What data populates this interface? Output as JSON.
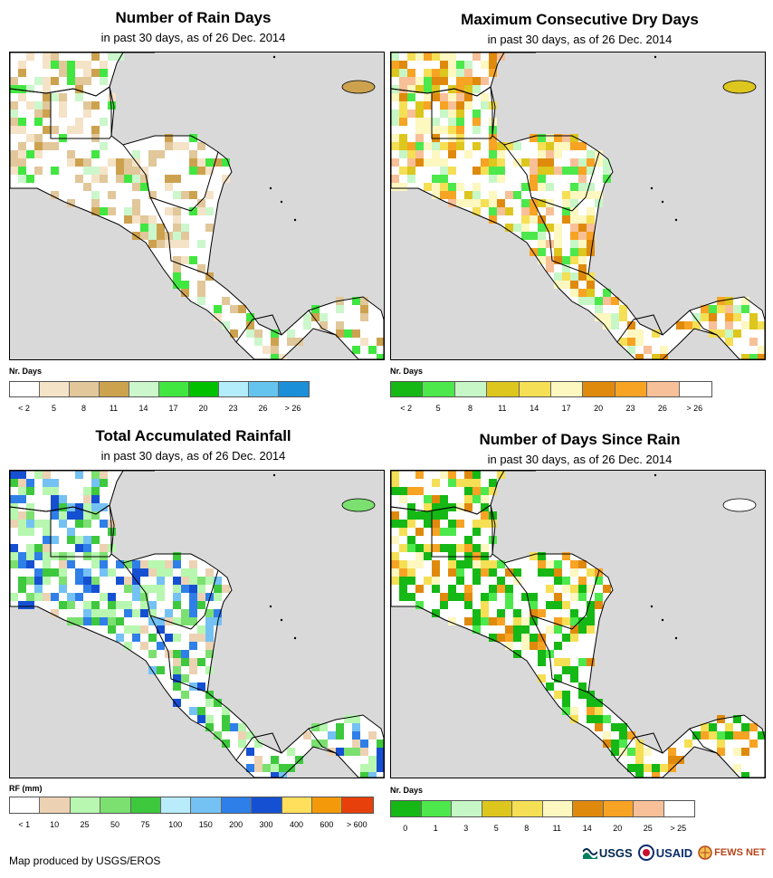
{
  "panels": [
    {
      "id": "rain-days",
      "title": "Number of Rain Days",
      "subtitle": "in past 30 days, as of 26 Dec. 2014",
      "legend_title": "Nr. Days",
      "colors": [
        "#ffffff",
        "#f5e3c8",
        "#e1c79a",
        "#cda24f",
        "#ccf7cc",
        "#41e641",
        "#00c000",
        "#b3ecfb",
        "#65c4ee",
        "#1b8fd8"
      ],
      "labels": [
        "< 2",
        "5",
        "8",
        "11",
        "14",
        "17",
        "20",
        "23",
        "26",
        "> 26"
      ],
      "palette": [
        "#ffffff",
        "#ffffff",
        "#ffffff",
        "#f5e3c8",
        "#e1c79a",
        "#e1c79a",
        "#cda24f",
        "#ccf7cc",
        "#41e641"
      ]
    },
    {
      "id": "max-dry-days",
      "title": "Maximum Consecutive Dry Days",
      "subtitle": "in past 30 days, as of 26 Dec. 2014",
      "legend_title": "Nr. Days",
      "colors": [
        "#15b815",
        "#4ce84c",
        "#c7f7c7",
        "#ddc61e",
        "#f5df55",
        "#fdf7c0",
        "#df8a0d",
        "#f7a324",
        "#f8c098",
        "#ffffff"
      ],
      "labels": [
        "< 2",
        "5",
        "8",
        "11",
        "14",
        "17",
        "20",
        "23",
        "26",
        "> 26"
      ],
      "palette": [
        "#ffffff",
        "#fdf7c0",
        "#f5df55",
        "#ddc61e",
        "#df8a0d",
        "#f7a324",
        "#f8c098",
        "#fdf7c0",
        "#c7f7c7",
        "#4ce84c"
      ]
    },
    {
      "id": "total-rainfall",
      "title": "Total Accumulated Rainfall",
      "subtitle": "in past 30 days, as of 26 Dec. 2014",
      "legend_title": "RF (mm)",
      "colors": [
        "#ffffff",
        "#ecd2b3",
        "#b7f7b0",
        "#7be070",
        "#3dc83d",
        "#b9ecfa",
        "#74c1f4",
        "#2f7fe8",
        "#1650d2",
        "#ffdf5c",
        "#f49a0a",
        "#e8400a"
      ],
      "labels": [
        "< 1",
        "10",
        "25",
        "50",
        "75",
        "100",
        "150",
        "200",
        "300",
        "400",
        "600",
        "> 600"
      ],
      "palette": [
        "#ffffff",
        "#ecd2b3",
        "#b7f7b0",
        "#7be070",
        "#3dc83d",
        "#74c1f4",
        "#2f7fe8",
        "#1650d2",
        "#ffffff",
        "#b7f7b0"
      ]
    },
    {
      "id": "days-since-rain",
      "title": "Number of Days Since Rain",
      "subtitle": "in past 30 days, as of 26 Dec. 2014",
      "legend_title": "Nr. Days",
      "colors": [
        "#15b815",
        "#4ce84c",
        "#c7f7c7",
        "#ddc61e",
        "#f5df55",
        "#fdf7c0",
        "#df8a0d",
        "#f7a324",
        "#f8c098",
        "#ffffff"
      ],
      "labels": [
        "0",
        "1",
        "3",
        "5",
        "8",
        "11",
        "14",
        "20",
        "25",
        "> 25"
      ],
      "palette": [
        "#15b815",
        "#15b815",
        "#4ce84c",
        "#ffffff",
        "#df8a0d",
        "#f7a324",
        "#f5df55",
        "#fdf7c0",
        "#15b815",
        "#ffffff"
      ]
    }
  ],
  "map_colors": {
    "ocean": "#d9d9d9",
    "land": "#ffffff",
    "border": "#000000"
  },
  "footer": "Map produced by USGS/EROS",
  "logos": {
    "usgs": "USGS",
    "usaid": "USAID",
    "fews": "FEWS NET"
  }
}
